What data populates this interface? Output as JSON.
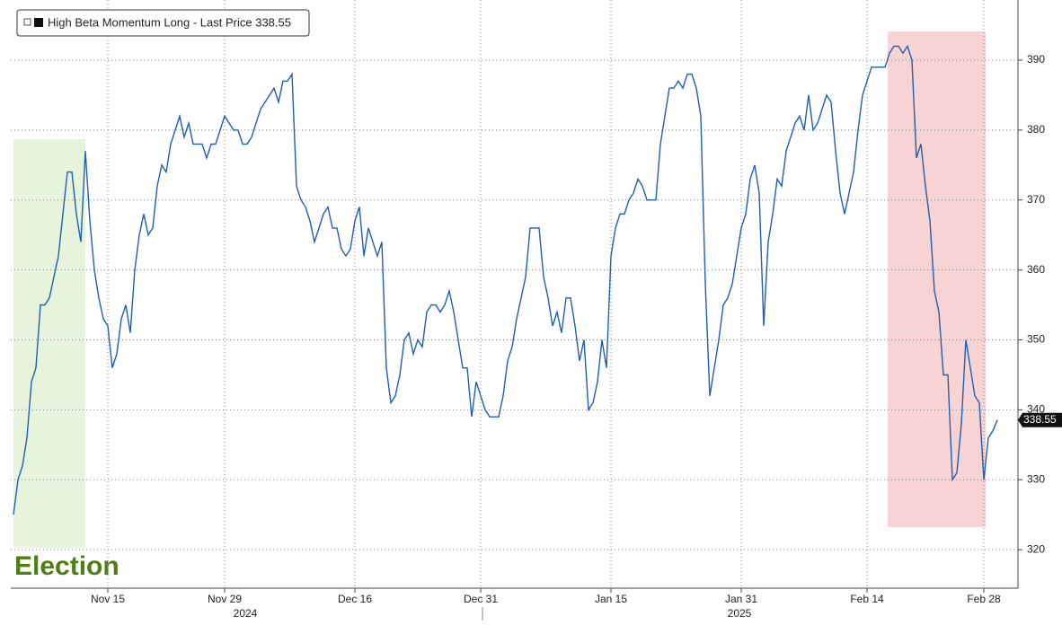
{
  "chart_data": {
    "type": "line",
    "legend": "High Beta Momentum Long - Last Price 338.55",
    "last_value_label": "338.55",
    "annotation": "Election",
    "years": [
      "2024",
      "2025"
    ],
    "categories": [
      null,
      null,
      null,
      null,
      null,
      null,
      null,
      null,
      null,
      null,
      null,
      null,
      null,
      null,
      null,
      null,
      null,
      null,
      null,
      null,
      null,
      "Nov 15",
      null,
      null,
      null,
      null,
      null,
      null,
      null,
      null,
      null,
      null,
      null,
      null,
      null,
      null,
      null,
      null,
      null,
      null,
      null,
      null,
      null,
      null,
      null,
      null,
      null,
      "Nov 29",
      null,
      null,
      null,
      null,
      null,
      null,
      null,
      null,
      null,
      null,
      null,
      null,
      null,
      null,
      null,
      null,
      null,
      null,
      null,
      null,
      null,
      null,
      null,
      null,
      null,
      null,
      null,
      null,
      "Dec 16",
      null,
      null,
      null,
      null,
      null,
      null,
      null,
      null,
      null,
      null,
      null,
      null,
      null,
      null,
      null,
      null,
      null,
      null,
      null,
      null,
      null,
      null,
      null,
      null,
      null,
      null,
      null,
      "Dec 31",
      null,
      null,
      null,
      null,
      null,
      null,
      null,
      null,
      null,
      null,
      null,
      null,
      null,
      null,
      null,
      null,
      null,
      null,
      null,
      null,
      null,
      null,
      null,
      null,
      null,
      null,
      null,
      null,
      "Jan 15",
      null,
      null,
      null,
      null,
      null,
      null,
      null,
      null,
      null,
      null,
      null,
      null,
      null,
      null,
      null,
      null,
      null,
      null,
      null,
      null,
      null,
      null,
      null,
      null,
      null,
      null,
      null,
      null,
      "Jan 31",
      null,
      null,
      null,
      null,
      null,
      null,
      null,
      null,
      null,
      null,
      null,
      null,
      null,
      null,
      null,
      null,
      null,
      null,
      null,
      null,
      null,
      null,
      null,
      null,
      null,
      null,
      null,
      "Feb 14",
      null,
      null,
      null,
      null,
      null,
      null,
      null,
      null,
      null,
      null,
      null,
      null,
      null,
      null,
      null,
      null,
      null,
      null,
      null,
      null,
      null,
      null,
      null,
      null,
      null,
      "Feb 28",
      null,
      null,
      null
    ],
    "series": [
      {
        "name": "High Beta Momentum Long",
        "color": "#1f5fb0",
        "values": [
          325,
          330,
          332,
          336,
          344,
          346,
          355,
          355,
          356,
          359,
          362,
          368,
          374,
          374,
          368,
          364,
          377,
          367,
          360,
          356,
          353,
          352,
          346,
          348,
          353,
          355,
          351,
          360,
          365,
          368,
          365,
          366,
          372,
          375,
          374,
          378,
          380,
          382,
          379,
          381,
          378,
          378,
          378,
          376,
          378,
          378,
          380,
          382,
          381,
          380,
          380,
          378,
          378,
          379,
          381,
          383,
          384,
          385,
          386,
          384,
          387,
          387,
          388,
          372,
          370,
          369,
          367,
          364,
          366,
          368,
          369,
          366,
          366,
          363,
          362,
          363,
          367,
          369,
          362,
          366,
          364,
          362,
          364,
          346,
          341,
          342,
          345,
          350,
          351,
          348,
          350,
          349,
          354,
          355,
          355,
          354,
          355,
          357,
          354,
          350,
          346,
          346,
          339,
          344,
          342,
          340,
          339,
          339,
          339,
          342,
          347,
          349,
          353,
          356,
          359,
          366,
          366,
          366,
          359,
          356,
          352,
          354,
          351,
          356,
          356,
          352,
          347,
          350,
          340,
          341,
          344,
          350,
          346,
          362,
          366,
          368,
          368,
          370,
          371,
          373,
          372,
          370,
          370,
          370,
          378,
          382,
          386,
          386,
          387,
          386,
          388,
          388,
          386,
          382,
          358,
          342,
          346,
          350,
          355,
          356,
          358,
          362,
          366,
          368,
          373,
          375,
          371,
          352,
          364,
          368,
          373,
          372,
          377,
          379,
          381,
          382,
          380,
          385,
          380,
          381,
          383,
          385,
          384,
          377,
          371,
          368,
          371,
          374,
          380,
          385,
          387,
          389,
          389,
          389,
          389,
          391,
          392,
          392,
          391,
          392,
          390,
          376,
          378,
          372,
          367,
          357,
          354,
          345,
          345,
          330,
          331,
          338,
          350,
          346,
          342,
          341,
          330,
          336,
          337,
          338.55
        ]
      }
    ],
    "ylim": [
      314.5,
      398.6
    ],
    "yticks": [
      320,
      330,
      340,
      350,
      360,
      370,
      380,
      390
    ],
    "grid": true
  }
}
